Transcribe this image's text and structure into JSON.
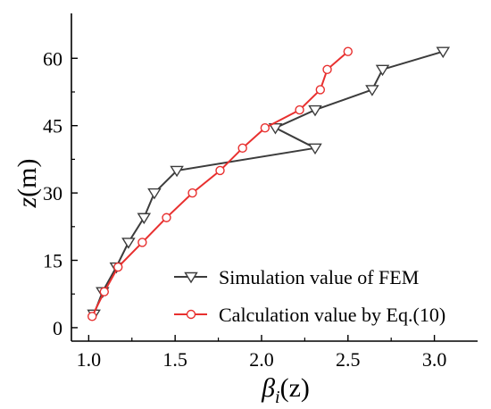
{
  "chart_data": {
    "type": "line",
    "xlim": [
      0.9,
      3.25
    ],
    "ylim": [
      -3,
      70
    ],
    "x_ticks": [
      1.0,
      1.5,
      2.0,
      2.5,
      3.0
    ],
    "x_tick_labels": [
      "1.0",
      "1.5",
      "2.0",
      "2.5",
      "3.0"
    ],
    "y_ticks": [
      0,
      15,
      30,
      45,
      60
    ],
    "y_tick_labels": [
      "0",
      "15",
      "30",
      "45",
      "60"
    ],
    "xlabel": {
      "base": "β",
      "sub": "i",
      "arg": "(z)"
    },
    "ylabel": {
      "var": "z",
      "unit": "(m)"
    },
    "grid": false,
    "legend_position": "bottom-right",
    "series": [
      {
        "name": "Simulation value of FEM",
        "color": "#3c3c3c",
        "marker": "triangle-down",
        "x": [
          1.03,
          1.08,
          1.16,
          1.23,
          1.32,
          1.38,
          1.51,
          2.31,
          2.08,
          2.31,
          2.64,
          2.7,
          3.05
        ],
        "y": [
          3,
          8,
          13.5,
          19,
          24.5,
          30,
          35,
          40,
          44.5,
          48.5,
          53,
          57.5,
          61.5
        ]
      },
      {
        "name": "Calculation value by Eq.(10)",
        "color": "#e8302f",
        "marker": "circle-open",
        "x": [
          1.02,
          1.09,
          1.17,
          1.31,
          1.45,
          1.6,
          1.76,
          1.89,
          2.02,
          2.22,
          2.34,
          2.38,
          2.5
        ],
        "y": [
          2.5,
          8,
          13.5,
          19,
          24.5,
          30,
          35,
          40,
          44.5,
          48.5,
          53,
          57.5,
          61.5
        ]
      }
    ]
  }
}
